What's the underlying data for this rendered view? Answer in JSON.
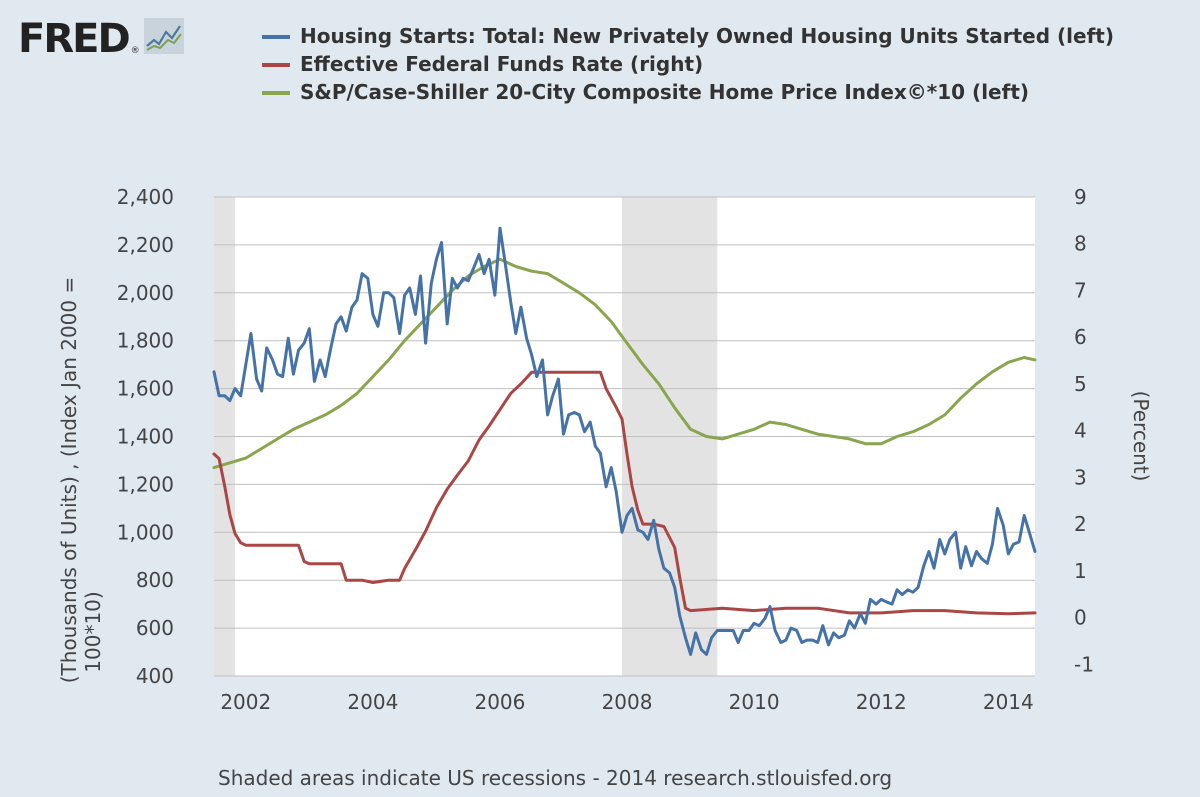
{
  "header": {
    "logo_text": "FRED",
    "logo_registered": "®",
    "logo_icon": "line-chart-icon"
  },
  "legend": [
    {
      "label": "Housing Starts: Total: New Privately Owned Housing Units Started (left)",
      "color": "#4572a7"
    },
    {
      "label": "Effective Federal Funds Rate (right)",
      "color": "#aa4643"
    },
    {
      "label": "S&P/Case-Shiller 20-City Composite Home Price Index©*10 (left)",
      "color": "#89a54e"
    }
  ],
  "footer": {
    "source": "Shaded areas indicate US recessions - 2014 research.stlouisfed.org"
  },
  "chart_data": {
    "type": "line",
    "x_range": [
      2001.5,
      2014.42
    ],
    "x_ticks": [
      "2002",
      "2004",
      "2006",
      "2008",
      "2010",
      "2012",
      "2014"
    ],
    "x_tick_values": [
      2002,
      2004,
      2006,
      2008,
      2010,
      2012,
      2014
    ],
    "y_left": {
      "label_line1": "(Thousands of Units) , (Index Jan 2000 =",
      "label_line2": "100*10)",
      "range": [
        400,
        2400
      ],
      "ticks": [
        "400",
        "600",
        "800",
        "1,000",
        "1,200",
        "1,400",
        "1,600",
        "1,800",
        "2,000",
        "2,200",
        "2,400"
      ],
      "tick_values": [
        400,
        600,
        800,
        1000,
        1200,
        1400,
        1600,
        1800,
        2000,
        2200,
        2400
      ]
    },
    "y_right": {
      "label": "(Percent)",
      "range": [
        -1.25,
        9
      ],
      "ticks": [
        "-1",
        "0",
        "1",
        "2",
        "3",
        "4",
        "5",
        "6",
        "7",
        "8",
        "9"
      ],
      "tick_values": [
        -1,
        0,
        1,
        2,
        3,
        4,
        5,
        6,
        7,
        8,
        9
      ]
    },
    "grid": true,
    "legend_position": "top",
    "recessions": [
      [
        2001.5,
        2001.83
      ],
      [
        2007.92,
        2009.42
      ]
    ],
    "series": [
      {
        "name": "Housing Starts: Total: New Privately Owned Housing Units Started (left)",
        "axis": "left",
        "color": "#4572a7",
        "x": [
          2001.5,
          2001.58,
          2001.67,
          2001.75,
          2001.83,
          2001.92,
          2002.0,
          2002.08,
          2002.17,
          2002.25,
          2002.33,
          2002.42,
          2002.5,
          2002.58,
          2002.67,
          2002.75,
          2002.83,
          2002.92,
          2003.0,
          2003.08,
          2003.17,
          2003.25,
          2003.33,
          2003.42,
          2003.5,
          2003.58,
          2003.67,
          2003.75,
          2003.83,
          2003.92,
          2004.0,
          2004.08,
          2004.17,
          2004.25,
          2004.33,
          2004.42,
          2004.5,
          2004.58,
          2004.67,
          2004.75,
          2004.83,
          2004.92,
          2005.0,
          2005.08,
          2005.17,
          2005.25,
          2005.33,
          2005.42,
          2005.5,
          2005.58,
          2005.67,
          2005.75,
          2005.83,
          2005.92,
          2006.0,
          2006.08,
          2006.17,
          2006.25,
          2006.33,
          2006.42,
          2006.5,
          2006.58,
          2006.67,
          2006.75,
          2006.83,
          2006.92,
          2007.0,
          2007.08,
          2007.17,
          2007.25,
          2007.33,
          2007.42,
          2007.5,
          2007.58,
          2007.67,
          2007.75,
          2007.83,
          2007.92,
          2008.0,
          2008.08,
          2008.17,
          2008.25,
          2008.33,
          2008.42,
          2008.5,
          2008.58,
          2008.67,
          2008.75,
          2008.83,
          2008.92,
          2009.0,
          2009.08,
          2009.17,
          2009.25,
          2009.33,
          2009.42,
          2009.5,
          2009.58,
          2009.67,
          2009.75,
          2009.83,
          2009.92,
          2010.0,
          2010.08,
          2010.17,
          2010.25,
          2010.33,
          2010.42,
          2010.5,
          2010.58,
          2010.67,
          2010.75,
          2010.83,
          2010.92,
          2011.0,
          2011.08,
          2011.17,
          2011.25,
          2011.33,
          2011.42,
          2011.5,
          2011.58,
          2011.67,
          2011.75,
          2011.83,
          2011.92,
          2012.0,
          2012.08,
          2012.17,
          2012.25,
          2012.33,
          2012.42,
          2012.5,
          2012.58,
          2012.67,
          2012.75,
          2012.83,
          2012.92,
          2013.0,
          2013.08,
          2013.17,
          2013.25,
          2013.33,
          2013.42,
          2013.5,
          2013.58,
          2013.67,
          2013.75,
          2013.83,
          2013.92,
          2014.0,
          2014.08,
          2014.17,
          2014.25,
          2014.33,
          2014.42
        ],
        "values": [
          1670,
          1570,
          1570,
          1550,
          1600,
          1570,
          1700,
          1830,
          1640,
          1590,
          1770,
          1720,
          1660,
          1650,
          1810,
          1660,
          1760,
          1790,
          1850,
          1630,
          1720,
          1650,
          1760,
          1870,
          1900,
          1840,
          1940,
          1970,
          2080,
          2060,
          1910,
          1860,
          2000,
          2000,
          1980,
          1830,
          1990,
          2020,
          1910,
          2070,
          1790,
          2040,
          2140,
          2210,
          1870,
          2060,
          2020,
          2060,
          2050,
          2100,
          2160,
          2080,
          2140,
          1990,
          2270,
          2130,
          1960,
          1830,
          1940,
          1810,
          1740,
          1650,
          1720,
          1490,
          1570,
          1640,
          1410,
          1490,
          1500,
          1490,
          1420,
          1460,
          1360,
          1330,
          1190,
          1270,
          1170,
          1000,
          1070,
          1100,
          1010,
          1000,
          970,
          1050,
          930,
          850,
          830,
          770,
          650,
          560,
          490,
          580,
          510,
          490,
          560,
          590,
          590,
          590,
          590,
          540,
          590,
          590,
          620,
          610,
          640,
          690,
          590,
          540,
          550,
          600,
          590,
          540,
          550,
          550,
          540,
          610,
          530,
          580,
          560,
          570,
          630,
          600,
          660,
          620,
          720,
          700,
          720,
          710,
          700,
          760,
          740,
          760,
          750,
          770,
          860,
          920,
          850,
          970,
          910,
          970,
          1000,
          850,
          940,
          860,
          920,
          890,
          870,
          950,
          1100,
          1030,
          910,
          950,
          960,
          1070,
          1000,
          920
        ]
      },
      {
        "name": "Effective Federal Funds Rate (right)",
        "axis": "right",
        "color": "#aa4643",
        "x": [
          2001.5,
          2001.58,
          2001.67,
          2001.75,
          2001.83,
          2001.92,
          2002.0,
          2002.17,
          2002.33,
          2002.5,
          2002.67,
          2002.83,
          2002.92,
          2003.0,
          2003.17,
          2003.33,
          2003.5,
          2003.58,
          2003.83,
          2004.0,
          2004.25,
          2004.42,
          2004.5,
          2004.67,
          2004.83,
          2005.0,
          2005.17,
          2005.33,
          2005.5,
          2005.67,
          2005.83,
          2006.0,
          2006.17,
          2006.33,
          2006.5,
          2006.58,
          2006.83,
          2007.0,
          2007.33,
          2007.58,
          2007.67,
          2007.83,
          2007.92,
          2008.0,
          2008.08,
          2008.17,
          2008.25,
          2008.42,
          2008.58,
          2008.75,
          2008.83,
          2008.92,
          2009.0,
          2009.5,
          2010.0,
          2010.5,
          2011.0,
          2011.5,
          2012.0,
          2012.5,
          2013.0,
          2013.5,
          2014.0,
          2014.42
        ],
        "values": [
          3.5,
          3.4,
          2.8,
          2.2,
          1.8,
          1.6,
          1.55,
          1.55,
          1.55,
          1.55,
          1.55,
          1.55,
          1.2,
          1.15,
          1.15,
          1.15,
          1.15,
          0.8,
          0.8,
          0.75,
          0.8,
          0.8,
          1.05,
          1.45,
          1.85,
          2.35,
          2.75,
          3.05,
          3.35,
          3.8,
          4.1,
          4.45,
          4.8,
          5.0,
          5.25,
          5.25,
          5.25,
          5.25,
          5.25,
          5.25,
          4.9,
          4.5,
          4.25,
          3.5,
          2.8,
          2.3,
          2.0,
          2.0,
          1.95,
          1.5,
          0.85,
          0.2,
          0.15,
          0.2,
          0.15,
          0.2,
          0.2,
          0.1,
          0.1,
          0.15,
          0.15,
          0.1,
          0.08,
          0.1
        ]
      },
      {
        "name": "S&P/Case-Shiller 20-City Composite Home Price Index©*10 (left)",
        "axis": "left",
        "color": "#89a54e",
        "x": [
          2001.5,
          2001.75,
          2002.0,
          2002.25,
          2002.5,
          2002.75,
          2003.0,
          2003.25,
          2003.5,
          2003.75,
          2004.0,
          2004.25,
          2004.5,
          2004.75,
          2005.0,
          2005.25,
          2005.5,
          2005.75,
          2006.0,
          2006.25,
          2006.5,
          2006.75,
          2007.0,
          2007.25,
          2007.5,
          2007.75,
          2008.0,
          2008.25,
          2008.5,
          2008.75,
          2009.0,
          2009.25,
          2009.5,
          2009.75,
          2010.0,
          2010.25,
          2010.5,
          2010.75,
          2011.0,
          2011.25,
          2011.5,
          2011.75,
          2012.0,
          2012.25,
          2012.5,
          2012.75,
          2013.0,
          2013.25,
          2013.5,
          2013.75,
          2014.0,
          2014.25,
          2014.42
        ],
        "values": [
          1270,
          1290,
          1310,
          1350,
          1390,
          1430,
          1460,
          1490,
          1530,
          1580,
          1650,
          1720,
          1800,
          1870,
          1940,
          2010,
          2070,
          2110,
          2140,
          2110,
          2090,
          2080,
          2040,
          2000,
          1950,
          1880,
          1790,
          1700,
          1620,
          1520,
          1430,
          1400,
          1390,
          1410,
          1430,
          1460,
          1450,
          1430,
          1410,
          1400,
          1390,
          1370,
          1370,
          1400,
          1420,
          1450,
          1490,
          1560,
          1620,
          1670,
          1710,
          1730,
          1720
        ]
      }
    ]
  }
}
